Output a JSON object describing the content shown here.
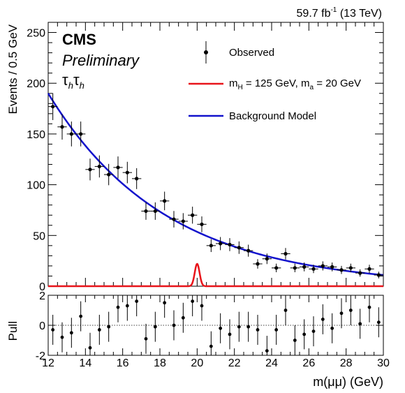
{
  "header": {
    "lumi": "59.7 fb",
    "lumi_sup": "-1",
    "energy": " (13 TeV)",
    "experiment": "CMS",
    "status": "Preliminary",
    "channel": "τ",
    "channel_sub": "h"
  },
  "legend": {
    "observed": "Observed",
    "signal_mH": "m",
    "signal_mH_sub": "H",
    "signal_mid": " = 125 GeV, m",
    "signal_ma_sub": "a",
    "signal_end": " = 20 GeV",
    "background": "Background Model"
  },
  "colors": {
    "signal": "#e8141a",
    "background": "#1212cc",
    "data": "#000000"
  },
  "chart_data": [
    {
      "type": "scatter",
      "panel": "main",
      "ylabel": "Events / 0.5 GeV",
      "xlim": [
        12,
        30
      ],
      "ylim": [
        0,
        260
      ],
      "y_ticks": [
        0,
        50,
        100,
        150,
        200,
        250
      ],
      "x": [
        12.25,
        12.75,
        13.25,
        13.75,
        14.25,
        14.75,
        15.25,
        15.75,
        16.25,
        16.75,
        17.25,
        17.75,
        18.25,
        18.75,
        19.25,
        19.75,
        20.25,
        20.75,
        21.25,
        21.75,
        22.25,
        22.75,
        23.25,
        23.75,
        24.25,
        24.75,
        25.25,
        25.75,
        26.25,
        26.75,
        27.25,
        27.75,
        28.25,
        28.75,
        29.25,
        29.75
      ],
      "series": [
        {
          "kind": "observed",
          "values": [
            177,
            157,
            150,
            150,
            115,
            118,
            110,
            117,
            112,
            106,
            74,
            74,
            84,
            66,
            64,
            70,
            61,
            40,
            42,
            41,
            38,
            35,
            22,
            27,
            18,
            32,
            18,
            19,
            17,
            20,
            19,
            16,
            18,
            13,
            17,
            11
          ],
          "x_err": 0.25
        },
        {
          "kind": "background_model",
          "model": "exponential",
          "y_at_x12": 190,
          "y_at_x30": 11
        },
        {
          "kind": "signal",
          "model": "gaussian",
          "mean": 20.0,
          "sigma": 0.13,
          "peak": 22
        }
      ]
    },
    {
      "type": "scatter",
      "panel": "pull",
      "ylabel": "Pull",
      "xlabel": "m(μμ) (GeV)",
      "xlim": [
        12,
        30
      ],
      "ylim": [
        -2,
        2
      ],
      "y_ticks": [
        -2,
        0,
        2
      ],
      "x_ticks": [
        12,
        14,
        16,
        18,
        20,
        22,
        24,
        26,
        28,
        30
      ],
      "x": [
        12.25,
        12.75,
        13.25,
        13.75,
        14.25,
        14.75,
        15.25,
        15.75,
        16.25,
        16.75,
        17.25,
        17.75,
        18.25,
        18.75,
        19.25,
        19.75,
        20.25,
        20.75,
        21.25,
        21.75,
        22.25,
        22.75,
        23.25,
        23.75,
        24.25,
        24.75,
        25.25,
        25.75,
        26.25,
        26.75,
        27.25,
        27.75,
        28.25,
        28.75,
        29.25,
        29.75
      ],
      "values": [
        -0.3,
        -0.8,
        -0.5,
        0.6,
        -1.5,
        -0.3,
        -0.1,
        1.2,
        1.3,
        1.6,
        -0.9,
        -0.1,
        1.5,
        0.0,
        0.5,
        1.6,
        1.3,
        -1.4,
        -0.2,
        -0.6,
        -0.1,
        -0.1,
        -0.3,
        -1.7,
        -0.3,
        1.0,
        -1.0,
        -0.6,
        -0.4,
        0.4,
        -0.2,
        0.8,
        1.0,
        0.1,
        1.2,
        0.2
      ]
    }
  ]
}
